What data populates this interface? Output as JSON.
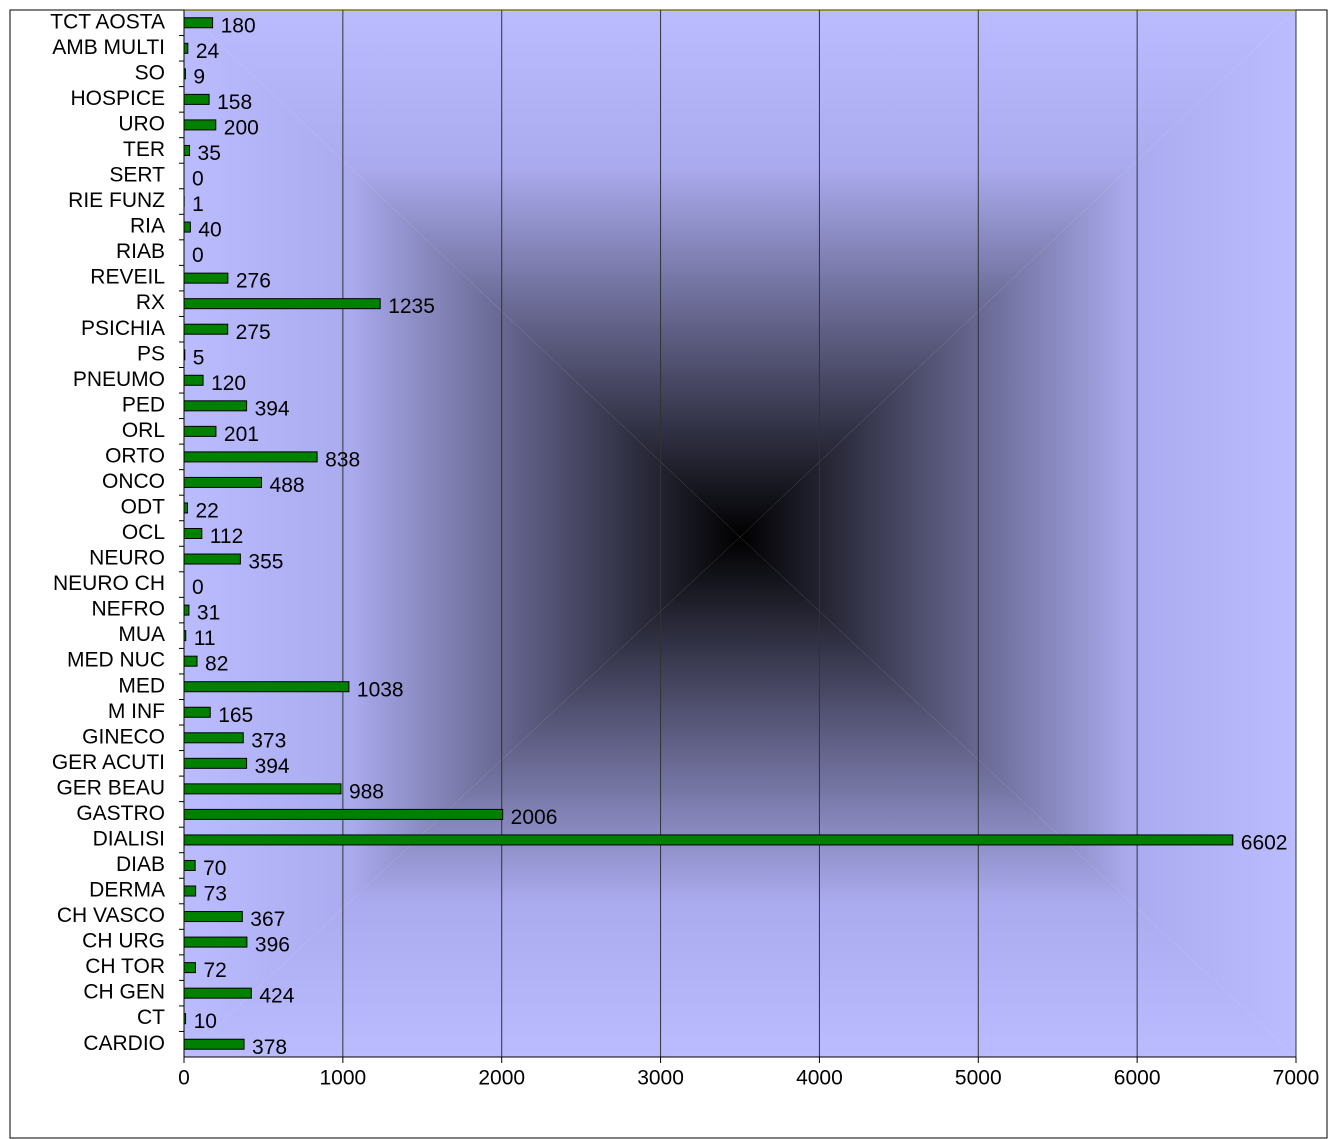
{
  "chart_data": {
    "type": "bar",
    "orientation": "horizontal",
    "categories": [
      "TCT AOSTA",
      "AMB MULTI",
      "SO",
      "HOSPICE",
      "URO",
      "TER",
      "SERT",
      "RIE FUNZ",
      "RIA",
      "RIAB",
      "REVEIL",
      "RX",
      "PSICHIA",
      "PS",
      "PNEUMO",
      "PED",
      "ORL",
      "ORTO",
      "ONCO",
      "ODT",
      "OCL",
      "NEURO",
      "NEURO CH",
      "NEFRO",
      "MUA",
      "MED NUC",
      "MED",
      "M INF",
      "GINECO",
      "GER ACUTI",
      "GER BEAU",
      "GASTRO",
      "DIALISI",
      "DIAB",
      "DERMA",
      "CH VASCO",
      "CH URG",
      "CH TOR",
      "CH GEN",
      "CT",
      "CARDIO"
    ],
    "values": [
      180,
      24,
      9,
      158,
      200,
      35,
      0,
      1,
      40,
      0,
      276,
      1235,
      275,
      5,
      120,
      394,
      201,
      838,
      488,
      22,
      112,
      355,
      0,
      31,
      11,
      82,
      1038,
      165,
      373,
      394,
      988,
      2006,
      6602,
      70,
      73,
      367,
      396,
      72,
      424,
      10,
      378
    ],
    "color": "#008000",
    "xlim": [
      0,
      7000
    ],
    "xticks": [
      0,
      1000,
      2000,
      3000,
      4000,
      5000,
      6000,
      7000
    ],
    "grid": true
  }
}
